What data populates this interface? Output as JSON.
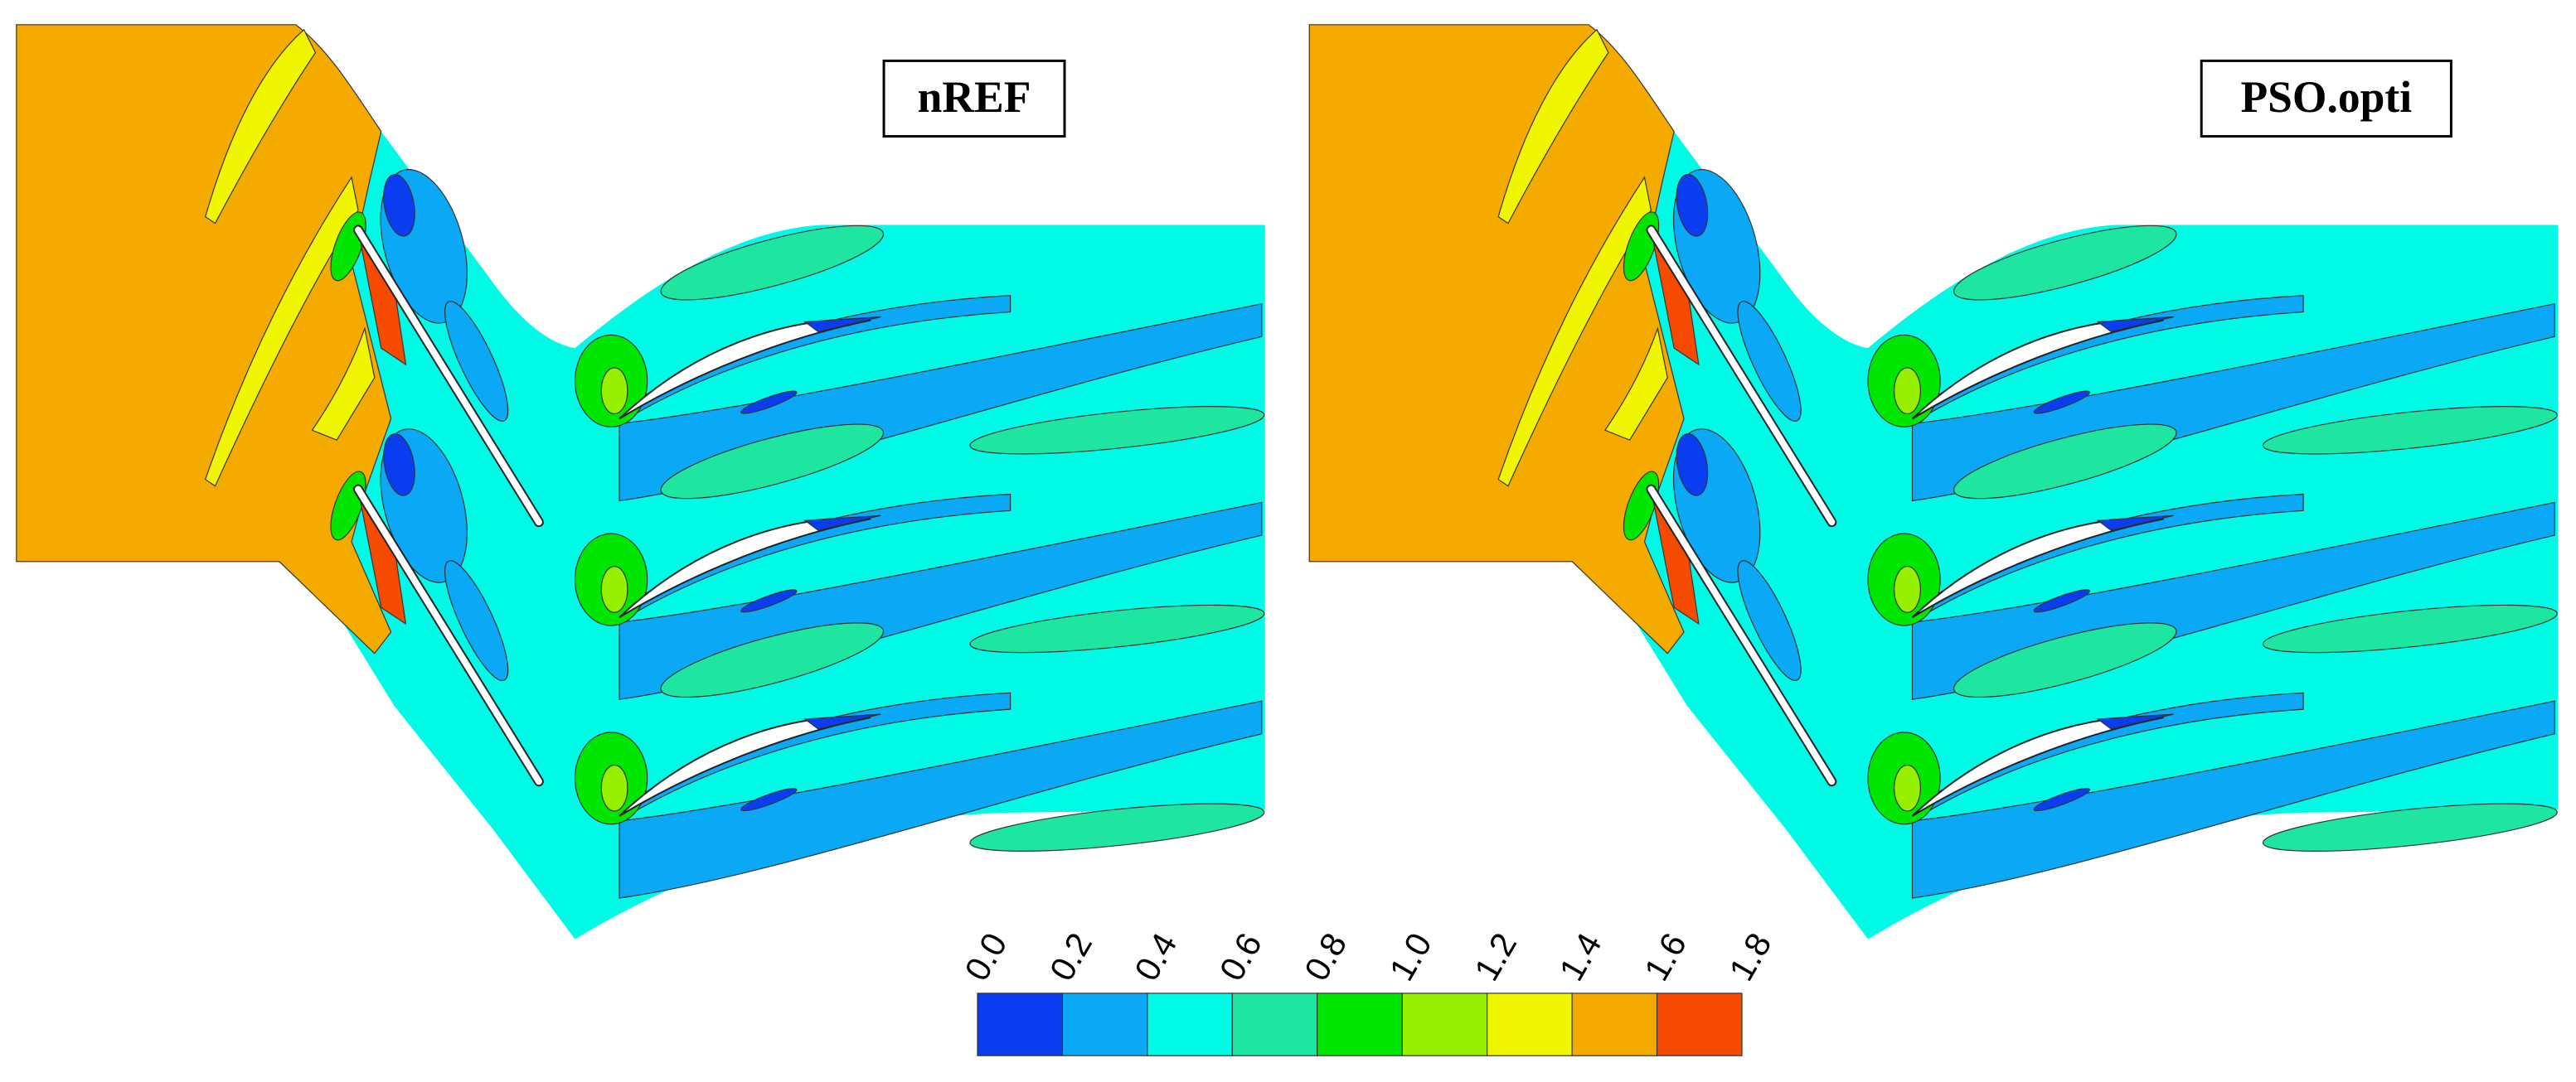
{
  "panels": [
    {
      "label": "nREF"
    },
    {
      "label": "PSO.opti"
    }
  ],
  "colorbar": {
    "ticks": [
      "0.0",
      "0.2",
      "0.4",
      "0.6",
      "0.8",
      "1.0",
      "1.2",
      "1.4",
      "1.6",
      "1.8"
    ],
    "colors": [
      "#0a3cf0",
      "#0aa8f5",
      "#00fae6",
      "#1ee6a0",
      "#00e600",
      "#96f000",
      "#f0f500",
      "#f5aa00",
      "#f54b00"
    ]
  }
}
